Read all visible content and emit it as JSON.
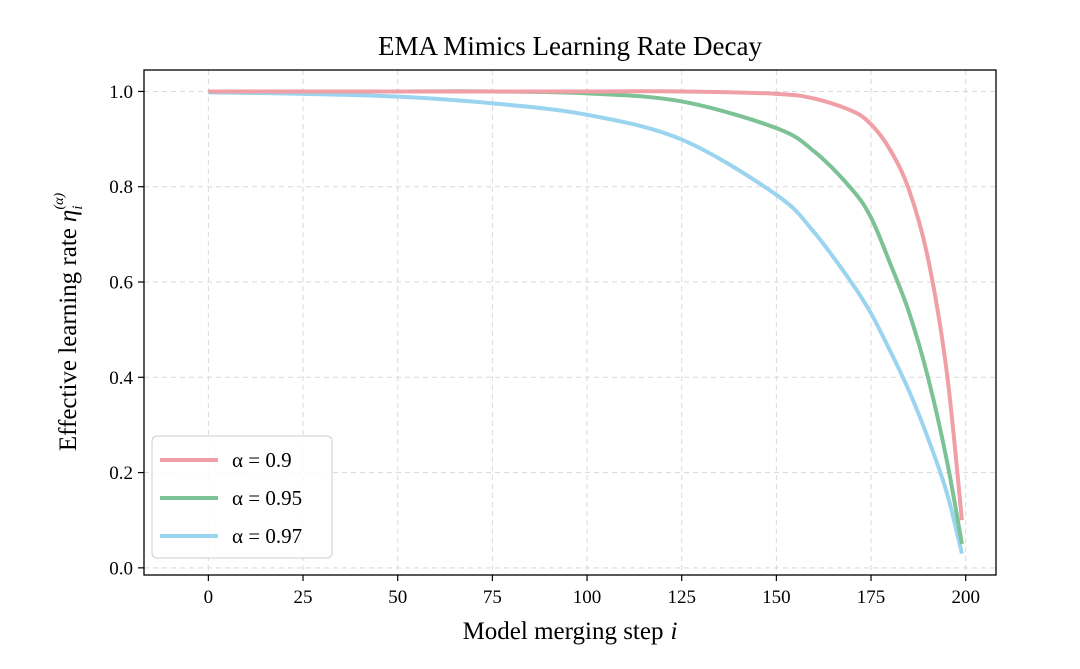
{
  "chart_data": {
    "type": "line",
    "title": "EMA Mimics Learning Rate Decay",
    "xlabel": "Model merging step",
    "xlabel_var": "i",
    "ylabel": "Effective learning rate",
    "ylabel_symbol": "η",
    "ylabel_sub": "i",
    "ylabel_sup": "(α)",
    "xlim": [
      -17,
      208
    ],
    "ylim": [
      -0.015,
      1.045
    ],
    "xticks": [
      0,
      25,
      50,
      75,
      100,
      125,
      150,
      175,
      200
    ],
    "xtick_labels": [
      "0",
      "25",
      "50",
      "75",
      "100",
      "125",
      "150",
      "175",
      "200"
    ],
    "yticks": [
      0.0,
      0.2,
      0.4,
      0.6,
      0.8,
      1.0
    ],
    "ytick_labels": [
      "0.0",
      "0.2",
      "0.4",
      "0.6",
      "0.8",
      "1.0"
    ],
    "grid": true,
    "legend_position": "lower-left",
    "series": [
      {
        "name": "α = 0.9",
        "color": "#ef9fa5",
        "x": [
          0,
          25,
          50,
          75,
          100,
          125,
          150,
          160,
          170,
          175,
          180,
          185,
          190,
          195,
          199
        ],
        "y": [
          1.0,
          1.0,
          1.0,
          1.0,
          1.0,
          1.0,
          0.995,
          0.985,
          0.959,
          0.931,
          0.878,
          0.794,
          0.651,
          0.411,
          0.1
        ]
      },
      {
        "name": "α = 0.95",
        "color": "#7cc295",
        "x": [
          0,
          25,
          50,
          75,
          100,
          125,
          150,
          160,
          170,
          175,
          180,
          185,
          190,
          195,
          199
        ],
        "y": [
          1.0,
          1.0,
          1.0,
          1.0,
          0.996,
          0.979,
          0.923,
          0.874,
          0.794,
          0.735,
          0.64,
          0.537,
          0.401,
          0.226,
          0.05
        ]
      },
      {
        "name": "α = 0.97",
        "color": "#9bd4ef",
        "x": [
          0,
          25,
          50,
          75,
          100,
          125,
          150,
          160,
          170,
          175,
          180,
          185,
          190,
          195,
          199
        ],
        "y": [
          0.998,
          0.995,
          0.989,
          0.975,
          0.951,
          0.899,
          0.783,
          0.704,
          0.597,
          0.534,
          0.456,
          0.372,
          0.273,
          0.158,
          0.03
        ]
      }
    ]
  }
}
